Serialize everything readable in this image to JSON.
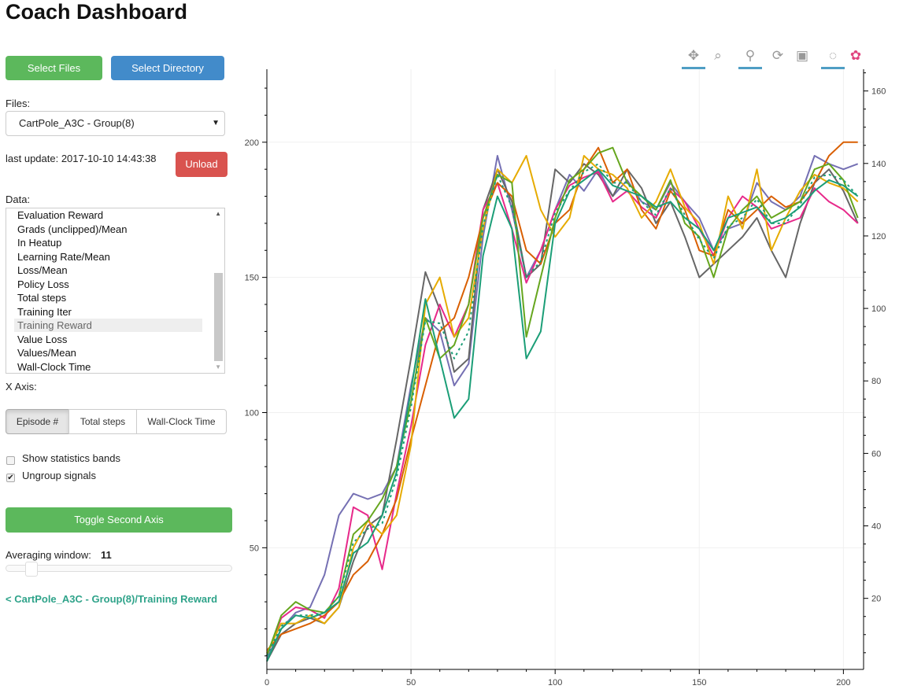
{
  "title": "Coach Dashboard",
  "buttons": {
    "select_files": "Select Files",
    "select_directory": "Select Directory",
    "unload": "Unload",
    "toggle_second_axis": "Toggle Second Axis"
  },
  "colors": {
    "green": "#5cb85c",
    "blue": "#428bca",
    "red": "#d9534f",
    "link": "#2fa38a"
  },
  "files": {
    "label": "Files:",
    "selected": "CartPole_A3C - Group(8)"
  },
  "last_update": "last update: 2017-10-10 14:43:38",
  "data_list": {
    "label": "Data:",
    "items": [
      "Evaluation Reward",
      "Grads (unclipped)/Mean",
      "In Heatup",
      "Learning Rate/Mean",
      "Loss/Mean",
      "Policy Loss",
      "Total steps",
      "Training Iter",
      "Training Reward",
      "Value Loss",
      "Values/Mean",
      "Wall-Clock Time"
    ],
    "selected": "Training Reward"
  },
  "x_axis": {
    "label": "X Axis:",
    "options": [
      "Episode #",
      "Total steps",
      "Wall-Clock Time"
    ],
    "selected": "Episode #"
  },
  "checkboxes": [
    {
      "label": "Show statistics bands",
      "checked": false
    },
    {
      "label": "Ungroup signals",
      "checked": true
    }
  ],
  "averaging": {
    "label": "Averaging window:",
    "value": "11"
  },
  "signal_link": "< CartPole_A3C - Group(8)/Training Reward",
  "toolbar": [
    {
      "icon": "pan-icon",
      "active": true
    },
    {
      "icon": "box-zoom-icon",
      "active": false
    },
    {
      "icon": "wheel-zoom-icon",
      "active": true
    },
    {
      "icon": "reset-icon",
      "active": false
    },
    {
      "icon": "save-icon",
      "active": false
    },
    {
      "icon": "crosshair-icon",
      "active": true
    },
    {
      "icon": "bokeh-logo-icon",
      "active": false
    }
  ],
  "chart_data": {
    "type": "line",
    "xlim": [
      0,
      207
    ],
    "ylim": [
      5,
      227
    ],
    "y2lim": [
      0.4,
      166
    ],
    "xticks": [
      0,
      50,
      100,
      150,
      200
    ],
    "yticks": [
      50,
      100,
      150,
      200
    ],
    "y2ticks": [
      20,
      40,
      60,
      80,
      100,
      120,
      140,
      160
    ],
    "grid": true,
    "x": [
      0,
      5,
      10,
      15,
      20,
      25,
      30,
      35,
      40,
      45,
      50,
      55,
      60,
      65,
      70,
      75,
      80,
      85,
      90,
      95,
      100,
      105,
      110,
      115,
      120,
      125,
      130,
      135,
      140,
      145,
      150,
      155,
      160,
      165,
      170,
      175,
      180,
      185,
      190,
      195,
      200,
      205
    ],
    "series": [
      {
        "color": "#7570b3",
        "values": [
          9,
          20,
          26,
          28,
          40,
          62,
          70,
          68,
          70,
          80,
          110,
          135,
          130,
          110,
          118,
          165,
          195,
          175,
          150,
          160,
          175,
          188,
          182,
          190,
          180,
          186,
          178,
          175,
          185,
          178,
          172,
          160,
          168,
          170,
          185,
          178,
          175,
          180,
          195,
          192,
          190,
          192
        ]
      },
      {
        "color": "#666666",
        "values": [
          8,
          18,
          22,
          24,
          22,
          28,
          45,
          58,
          62,
          90,
          120,
          152,
          138,
          115,
          120,
          175,
          190,
          178,
          150,
          155,
          190,
          185,
          192,
          188,
          180,
          190,
          183,
          170,
          178,
          165,
          150,
          155,
          160,
          165,
          172,
          160,
          150,
          170,
          185,
          190,
          182,
          170
        ]
      },
      {
        "color": "#e7298a",
        "values": [
          10,
          24,
          28,
          27,
          24,
          35,
          65,
          62,
          42,
          70,
          95,
          125,
          140,
          128,
          140,
          175,
          185,
          168,
          148,
          160,
          175,
          184,
          187,
          189,
          178,
          182,
          176,
          172,
          183,
          178,
          168,
          158,
          172,
          180,
          176,
          168,
          170,
          172,
          183,
          178,
          175,
          170
        ]
      },
      {
        "color": "#d95f02",
        "values": [
          12,
          18,
          20,
          22,
          25,
          30,
          40,
          45,
          55,
          68,
          90,
          110,
          130,
          135,
          150,
          172,
          185,
          180,
          160,
          155,
          170,
          175,
          190,
          198,
          185,
          190,
          175,
          168,
          182,
          175,
          160,
          158,
          175,
          170,
          175,
          180,
          176,
          178,
          185,
          195,
          200,
          200
        ]
      },
      {
        "color": "#e6ab02",
        "values": [
          11,
          22,
          22,
          25,
          22,
          28,
          50,
          60,
          55,
          62,
          88,
          140,
          150,
          128,
          135,
          168,
          190,
          185,
          195,
          175,
          165,
          172,
          195,
          190,
          188,
          183,
          172,
          178,
          190,
          176,
          170,
          155,
          180,
          168,
          190,
          160,
          172,
          182,
          188,
          185,
          183,
          178
        ]
      },
      {
        "color": "#66a61e",
        "values": [
          10,
          25,
          30,
          27,
          26,
          32,
          55,
          60,
          68,
          80,
          104,
          135,
          120,
          125,
          140,
          172,
          188,
          185,
          128,
          150,
          172,
          186,
          190,
          196,
          198,
          185,
          180,
          175,
          186,
          170,
          165,
          150,
          168,
          175,
          180,
          172,
          175,
          178,
          190,
          192,
          186,
          172
        ]
      },
      {
        "color": "#1b9e77",
        "values": [
          8,
          20,
          25,
          24,
          26,
          30,
          48,
          52,
          62,
          78,
          108,
          142,
          120,
          98,
          105,
          158,
          180,
          168,
          120,
          130,
          170,
          182,
          186,
          190,
          184,
          182,
          180,
          176,
          178,
          172,
          168,
          160,
          172,
          174,
          176,
          170,
          172,
          176,
          182,
          186,
          184,
          180
        ]
      },
      {
        "color": "#1b9e77",
        "dashed": true,
        "values": [
          10,
          21,
          25,
          25,
          26,
          32,
          52,
          57,
          59,
          76,
          102,
          134,
          133,
          120,
          130,
          169,
          188,
          176,
          150,
          156,
          174,
          182,
          189,
          192,
          185,
          185,
          178,
          173,
          183,
          173,
          164,
          157,
          169,
          172,
          179,
          170,
          170,
          177,
          187,
          188,
          186,
          180
        ]
      }
    ]
  }
}
